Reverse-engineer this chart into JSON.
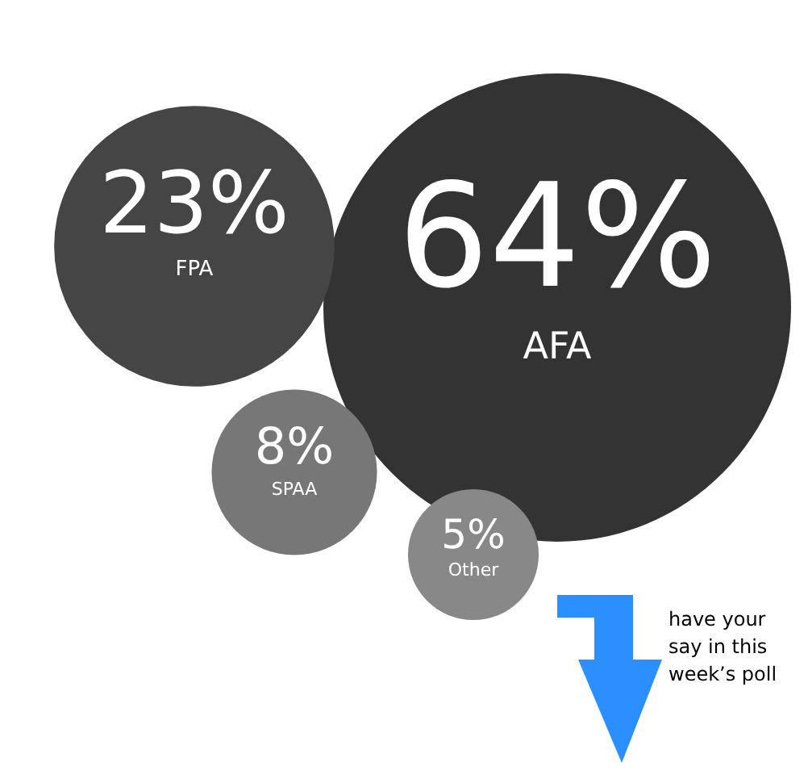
{
  "chart_data": {
    "type": "other",
    "categories": [
      "AFA",
      "FPA",
      "SPAA",
      "Other"
    ],
    "values": [
      64,
      23,
      8,
      5
    ],
    "value_labels": [
      "64%",
      "23%",
      "8%",
      "5%"
    ],
    "colors": [
      "#333333",
      "#454545",
      "#777777",
      "#888888"
    ],
    "annotations": [
      "have your say in this week’s poll"
    ]
  }
}
